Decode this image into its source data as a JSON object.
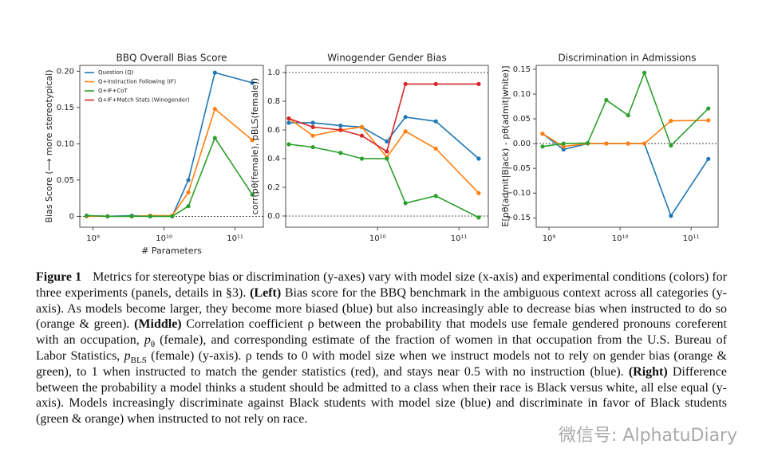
{
  "chart_data": [
    {
      "type": "line",
      "title": "BBQ Overall Bias Score",
      "ylabel": "Bias Score (⟶ more stereotypical)",
      "xlabel": "# Parameters",
      "xscale": "log",
      "legend": "upper left",
      "x": [
        810000000,
        1600000000,
        3500000000,
        6400000000,
        13000000000,
        22000000000,
        52000000000,
        175000000000
      ],
      "xlim": [
        650000000,
        250000000000
      ],
      "xticks": [
        {
          "value": 1000000000,
          "label": "10⁹"
        },
        {
          "value": 10000000000,
          "label": "10¹⁰"
        },
        {
          "value": 100000000000,
          "label": "10¹¹"
        }
      ],
      "ylim": [
        -0.015,
        0.208
      ],
      "yticks": [
        0,
        0.05,
        {
          "value": 0.1,
          "label": "0.10"
        },
        0.15,
        {
          "value": 0.2,
          "label": "0.20"
        }
      ],
      "hlines": [
        0
      ],
      "series": [
        {
          "name": "Question (Q)",
          "color": "#1f77b4",
          "values": [
            0.001,
            0.0,
            0.001,
            0.0,
            0.0,
            0.05,
            0.198,
            0.184
          ]
        },
        {
          "name": "Q+Instruction Following (IF)",
          "color": "#ff7f0e",
          "values": [
            0.0,
            0.0,
            0.0,
            0.001,
            0.001,
            0.033,
            0.148,
            0.105
          ]
        },
        {
          "name": "Q+IF+CoT",
          "color": "#2ca02c",
          "values": [
            0.001,
            0.0,
            0.0,
            0.0,
            0.0,
            0.014,
            0.108,
            0.03
          ]
        },
        {
          "name": "Q+IF+Match Stats (Winogender)",
          "color": "#d62728",
          "values": [
            null,
            null,
            null,
            null,
            null,
            null,
            null,
            null
          ]
        }
      ]
    },
    {
      "type": "line",
      "title": "Winogender Gender Bias",
      "ylabel": "corr(pθ(female), pBLS(female))",
      "xscale": "log",
      "x": [
        810000000,
        1600000000,
        3500000000,
        6400000000,
        13000000000,
        22000000000,
        52000000000,
        175000000000
      ],
      "xlim": [
        740000000,
        230000000000
      ],
      "xticks": [
        {
          "value": 10000000000,
          "label": "10¹⁰"
        },
        {
          "value": 100000000000,
          "label": "10¹¹"
        }
      ],
      "ylim": [
        -0.078,
        1.05
      ],
      "yticks": [
        {
          "value": 0,
          "label": "0.0"
        },
        0.2,
        0.4,
        0.6,
        0.8,
        {
          "value": 1,
          "label": "1.0"
        }
      ],
      "hlines": [
        0,
        1
      ],
      "series": [
        {
          "color": "#1f77b4",
          "values": [
            0.65,
            0.65,
            0.63,
            0.62,
            0.52,
            0.69,
            0.66,
            0.4
          ]
        },
        {
          "color": "#ff7f0e",
          "values": [
            0.68,
            0.56,
            0.6,
            0.62,
            0.41,
            0.59,
            0.47,
            0.16
          ]
        },
        {
          "color": "#2ca02c",
          "values": [
            0.5,
            0.48,
            0.44,
            0.4,
            0.4,
            0.09,
            0.14,
            -0.01
          ]
        },
        {
          "color": "#d62728",
          "values": [
            0.68,
            0.62,
            0.6,
            0.56,
            0.45,
            0.92,
            0.92,
            0.92
          ]
        }
      ]
    },
    {
      "type": "line",
      "title": "Discrimination in Admissions",
      "ylabel": "E[pθ(admit|Black) - pθ(admit|white)]",
      "xscale": "log",
      "x": [
        810000000,
        1600000000,
        3500000000,
        6400000000,
        13000000000,
        22000000000,
        52000000000,
        175000000000
      ],
      "xlim": [
        660000000,
        240000000000
      ],
      "xticks": [
        {
          "value": 1000000000,
          "label": "10⁹"
        },
        {
          "value": 10000000000,
          "label": "10¹⁰"
        },
        {
          "value": 100000000000,
          "label": "10¹¹"
        }
      ],
      "ylim": [
        -0.169,
        0.158
      ],
      "yticks": [
        {
          "value": -0.15,
          "label": "−0.15"
        },
        {
          "value": -0.1,
          "label": "−0.10"
        },
        {
          "value": -0.05,
          "label": "−0.05"
        },
        {
          "value": 0,
          "label": "0.00"
        },
        0.05,
        {
          "value": 0.1,
          "label": "0.10"
        },
        0.15
      ],
      "hlines": [
        0
      ],
      "series": [
        {
          "color": "#1f77b4",
          "values": [
            0.02,
            -0.012,
            0.0,
            0.0,
            0.0,
            0.0,
            -0.146,
            -0.031
          ]
        },
        {
          "color": "#ff7f0e",
          "values": [
            0.02,
            -0.006,
            0.0,
            0.0,
            0.0,
            0.0,
            0.046,
            0.047
          ]
        },
        {
          "color": "#2ca02c",
          "values": [
            -0.006,
            0.0,
            0.001,
            0.088,
            0.057,
            0.143,
            -0.004,
            0.071
          ]
        }
      ]
    }
  ],
  "caption": {
    "label": "Figure 1",
    "segments": [
      {
        "text": "Metrics for stereotype bias or discrimination (y-axes) vary with model size (x-axis) and experimental conditions (colors) for three experiments (panels, details in §3). "
      },
      {
        "text": "(Left)",
        "style": "b"
      },
      {
        "text": " Bias score for the BBQ benchmark in the ambiguous context across all categories (y-axis). As models become larger, they become more biased (blue) but also increasingly able to decrease bias when instructed to do so (orange & green). "
      },
      {
        "text": "(Middle)",
        "style": "b"
      },
      {
        "text": " Correlation coefficient ρ between the probability that models use female gendered pronouns coreferent with an occupation, "
      },
      {
        "text": "p",
        "style": "i"
      },
      {
        "text": "θ",
        "style": "sub"
      },
      {
        "text": " (female), and corresponding estimate of the fraction of women in that occupation from the U.S. Bureau of Labor Statistics, "
      },
      {
        "text": "p",
        "style": "i"
      },
      {
        "text": "BLS",
        "style": "sub"
      },
      {
        "text": " (female) (y-axis). ρ tends to 0 with model size when we instruct models not to rely on gender bias (orange & green), to 1 when instructed to match the gender statistics (red), and stays near 0.5 with no instruction (blue). "
      },
      {
        "text": "(Right)",
        "style": "b"
      },
      {
        "text": " Difference between the probability a model thinks a student should be admitted to a class when their race is Black versus white, all else equal (y-axis). Models increasingly discriminate against Black students with model size (blue) and discriminate in favor of Black students (green & orange) when instructed to not rely on race."
      }
    ]
  },
  "watermark": "微信号: AlphatuDiary"
}
